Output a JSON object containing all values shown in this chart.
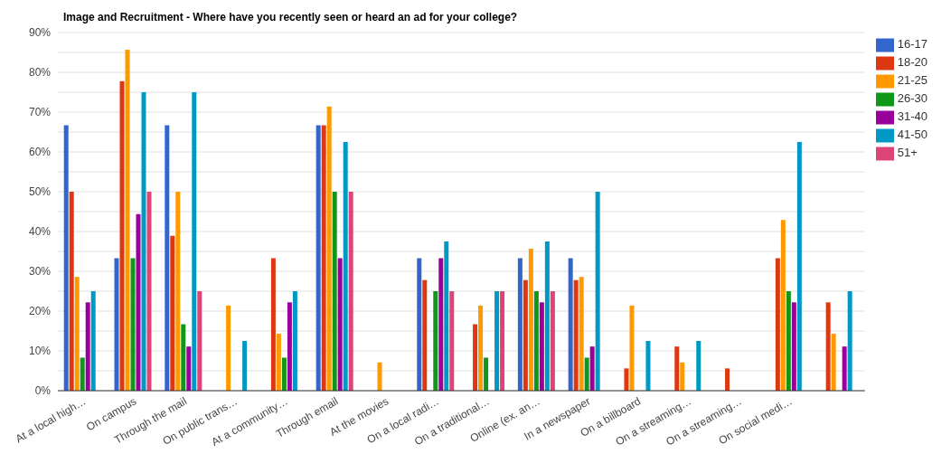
{
  "chart_data": {
    "type": "bar",
    "title": "Image and Recruitment - Where have you recently seen or heard an ad for your college?",
    "categories": [
      "At a local high…",
      "On campus",
      "Through the mail",
      "On public trans…",
      "At a community…",
      "Through email",
      "At the movies",
      "On a local radi…",
      "On a traditional…",
      "Online (ex. an…",
      "In a newspaper",
      "On a billboard",
      "On a streaming…",
      "On a streaming…",
      "On social medi…",
      null
    ],
    "series": [
      {
        "name": "16-17",
        "color": "#3366cc",
        "values": [
          66.7,
          33.3,
          66.7,
          0,
          0,
          66.7,
          0,
          33.3,
          0,
          33.3,
          33.3,
          0,
          0,
          0,
          0,
          0
        ]
      },
      {
        "name": "18-20",
        "color": "#dc3912",
        "values": [
          50,
          77.8,
          38.9,
          0,
          33.3,
          66.7,
          0,
          27.8,
          16.7,
          27.8,
          27.8,
          5.6,
          11.1,
          5.6,
          33.3,
          22.2
        ]
      },
      {
        "name": "21-25",
        "color": "#ff9900",
        "values": [
          28.6,
          85.7,
          50,
          21.4,
          14.3,
          71.4,
          7.1,
          0,
          21.4,
          35.7,
          28.6,
          21.4,
          7.1,
          0,
          42.9,
          14.3
        ]
      },
      {
        "name": "26-30",
        "color": "#109618",
        "values": [
          8.3,
          33.3,
          16.7,
          0,
          8.3,
          50,
          0,
          25,
          8.3,
          25,
          8.3,
          0,
          0,
          0,
          25,
          0
        ]
      },
      {
        "name": "31-40",
        "color": "#990099",
        "values": [
          22.2,
          44.4,
          11.1,
          0,
          22.2,
          33.3,
          0,
          33.3,
          0,
          22.2,
          11.1,
          0,
          0,
          0,
          22.2,
          11.1
        ]
      },
      {
        "name": "41-50",
        "color": "#0099c6",
        "values": [
          25,
          75,
          75,
          12.5,
          25,
          62.5,
          0,
          37.5,
          25,
          37.5,
          50,
          12.5,
          12.5,
          0,
          62.5,
          25
        ]
      },
      {
        "name": "51+",
        "color": "#dd4477",
        "values": [
          0,
          50,
          25,
          0,
          0,
          50,
          0,
          25,
          25,
          25,
          0,
          0,
          0,
          0,
          0,
          0
        ]
      }
    ],
    "ylim": [
      0,
      90
    ],
    "yticks": [
      {
        "value": 0,
        "label": "0%"
      },
      {
        "value": 5,
        "label": null
      },
      {
        "value": 10,
        "label": "10%"
      },
      {
        "value": 15,
        "label": null
      },
      {
        "value": 20,
        "label": "20%"
      },
      {
        "value": 25,
        "label": null
      },
      {
        "value": 30,
        "label": "30%"
      },
      {
        "value": 35,
        "label": null
      },
      {
        "value": 40,
        "label": "40%"
      },
      {
        "value": 45,
        "label": null
      },
      {
        "value": 50,
        "label": "50%"
      },
      {
        "value": 55,
        "label": null
      },
      {
        "value": 60,
        "label": "60%"
      },
      {
        "value": 65,
        "label": null
      },
      {
        "value": 70,
        "label": "70%"
      },
      {
        "value": 75,
        "label": null
      },
      {
        "value": 80,
        "label": "80%"
      },
      {
        "value": 85,
        "label": null
      },
      {
        "value": 90,
        "label": "90%"
      }
    ],
    "grid": "y",
    "legend": "top right"
  }
}
